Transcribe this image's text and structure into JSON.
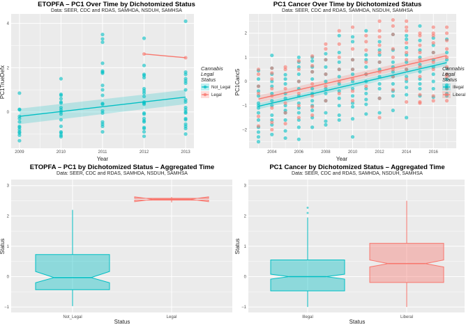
{
  "colors": {
    "teal": "#00BFC4",
    "salmon": "#F8766D",
    "panel_bg": "#EBEBEB",
    "grid": "#FFFFFF"
  },
  "chart_data": [
    {
      "type": "scatter",
      "title": "ETOPFA – PC1 Over Time by Dichotomized Status",
      "subtitle": "Data: SEER, CDC and RDAS, SAMHDA, NSDUH, SAMHSA",
      "xlabel": "Year",
      "ylabel": "PC1TrueDefx",
      "xticks": [
        2009,
        2010,
        2011,
        2012,
        2013
      ],
      "yticks": [
        0,
        2,
        4
      ],
      "xlim": [
        2008.8,
        2013.2
      ],
      "ylim": [
        -1.64,
        4.43
      ],
      "grid": true,
      "legend": {
        "title": [
          "Cannabis",
          "Legal",
          "Status"
        ],
        "position": "right",
        "entries": [
          "Not_Legal",
          "Legal"
        ]
      },
      "series": [
        {
          "name": "Not_Legal",
          "color": "#00BFC4",
          "points": {
            "2009": [
              0.85,
              0.12,
              0.1,
              -0.2,
              -0.3,
              -0.45,
              -0.65,
              -0.7,
              -0.8,
              -0.9,
              -0.95,
              -1.05,
              -1.3
            ],
            "2010": [
              1.5,
              0.8,
              0.75,
              0.6,
              0.45,
              0.4,
              0.2,
              0.1,
              0,
              -0.1,
              -0.35,
              -0.65,
              -0.9,
              -0.95,
              -1.05,
              -1.12
            ],
            "2011": [
              3.5,
              3.3,
              3.15,
              2.2,
              1.85,
              1.8,
              1.75,
              1.2,
              1.0,
              0.75,
              0.38,
              0.35,
              0.05,
              -0.05,
              -0.45,
              -0.55,
              -0.65,
              -0.9
            ],
            "2012": [
              3.33,
              2.1,
              1.7,
              1.65,
              1.55,
              1.05,
              0.95,
              0.85,
              0.7,
              0.45,
              0.4,
              0.35,
              -0.05,
              -0.1,
              -0.3,
              -0.4,
              -0.45,
              -0.7,
              -0.75,
              -0.9,
              -1.1
            ],
            "2013": [
              4.1,
              1.8,
              1.7,
              1.5,
              1.4,
              1.3,
              1.0,
              0.55,
              0.45,
              0.2,
              0.1,
              0,
              -0.05,
              -0.3,
              -0.35,
              -0.55,
              -0.65,
              -0.75,
              -1.0
            ]
          },
          "trend": {
            "x": [
              2009,
              2013
            ],
            "y": [
              -0.2,
              0.67
            ],
            "ci_low": [
              -0.55,
              0.35
            ],
            "ci_high": [
              0.15,
              1.0
            ]
          }
        },
        {
          "name": "Legal",
          "color": "#F8766D",
          "points": {
            "2012": [
              2.62
            ],
            "2013": [
              2.45
            ]
          },
          "trend": {
            "x": [
              2012,
              2013
            ],
            "y": [
              2.62,
              2.45
            ]
          }
        }
      ]
    },
    {
      "type": "scatter",
      "title": "PC1 Cancer Over Time by Dichotomized Status",
      "subtitle": "Data: SEER, CDC and RDAS, SAMHDA, NSDUH, SAMHSA",
      "xlabel": "Year",
      "ylabel": "PC1Canc5",
      "xticks": [
        2004,
        2006,
        2008,
        2010,
        2012,
        2014,
        2016
      ],
      "yticks": [
        -2,
        -1,
        0,
        1,
        2
      ],
      "xlim": [
        2002.3,
        2017.7
      ],
      "ylim": [
        -2.77,
        2.8
      ],
      "grid": true,
      "legend": {
        "title": [
          "Cannabis",
          "Legal",
          "Status"
        ],
        "position": "right",
        "entries": [
          "Illegal",
          "Liberal"
        ]
      },
      "series": [
        {
          "name": "Illegal",
          "color": "#00BFC4",
          "points": {
            "2003": [
              0.45,
              0.1,
              -0.2,
              -0.4,
              -0.6,
              -0.9,
              -1.0,
              -1.1,
              -1.3,
              -1.6,
              -1.9,
              -2.1,
              -2.3,
              -2.5
            ],
            "2004": [
              1.08,
              0.55,
              0.3,
              0,
              -0.2,
              -0.5,
              -0.8,
              -1.0,
              -1.4,
              -1.6,
              -1.8,
              -2.2
            ],
            "2005": [
              0.28,
              0.1,
              -0.1,
              -0.5,
              -0.7,
              -1.0,
              -1.2,
              -1.3,
              -1.6,
              -2.05,
              -2.35
            ],
            "2006": [
              1.0,
              0.8,
              0.6,
              0.3,
              0,
              -0.3,
              -0.6,
              -0.9,
              -1.1,
              -1.3,
              -1.6,
              -1.9,
              -2.4
            ],
            "2007": [
              1.0,
              0.85,
              0.6,
              0.4,
              0.1,
              -0.3,
              -0.5,
              -0.8,
              -1.0,
              -1.2,
              -1.5,
              -1.9
            ],
            "2008": [
              1.15,
              0.9,
              0.6,
              0.3,
              0,
              -0.3,
              -0.5,
              -0.8,
              -1.3,
              -1.65,
              -1.8
            ],
            "2009": [
              1.9,
              1.2,
              0.8,
              0.5,
              0.2,
              -0.1,
              -0.4,
              -0.7,
              -1.0,
              -1.4,
              -1.6
            ],
            "2010": [
              1.85,
              1.65,
              0.9,
              0.5,
              0.3,
              0,
              -0.3,
              -0.6,
              -0.9,
              -1.05,
              -1.55,
              -2.3
            ],
            "2011": [
              2.1,
              1.1,
              0.9,
              0.6,
              0.3,
              0,
              -0.3,
              -0.5,
              -0.75,
              -0.95,
              -1.35
            ],
            "2012": [
              1.65,
              1.3,
              1.1,
              0.8,
              0.5,
              0.2,
              -0.1,
              -0.3,
              -0.7,
              -1.3
            ],
            "2013": [
              1.95,
              1.3,
              0.8,
              0.6,
              0.4,
              0.2,
              -0.1,
              -0.4,
              -0.6,
              -1.2
            ],
            "2014": [
              1.9,
              1.75,
              1.4,
              1.1,
              0.8,
              0.5,
              0.2,
              0,
              -0.25,
              -0.55,
              -1.5
            ],
            "2015": [
              2.3,
              1.7,
              1.3,
              1.0,
              0.7,
              0.4,
              0.1,
              -0.1,
              -0.3,
              -0.6
            ],
            "2016": [
              1.8,
              1.5,
              1.2,
              0.9,
              0.6,
              0.3,
              0,
              -0.3,
              -0.65
            ],
            "2017": [
              1.75,
              1.2,
              0.9,
              0.55,
              0.3,
              0.1,
              -0.15,
              -0.3,
              -0.5,
              -0.6
            ]
          },
          "trend": {
            "x": [
              2003,
              2017
            ],
            "y": [
              -1.03,
              0.78
            ],
            "ci_low": [
              -1.15,
              0.66
            ],
            "ci_high": [
              -0.91,
              0.9
            ]
          }
        },
        {
          "name": "Liberal",
          "color": "#F8766D",
          "points": {
            "2003": [
              0.5,
              0.3,
              -0.2,
              -0.5,
              -1.45,
              -1.85
            ],
            "2004": [
              0.55,
              0.35,
              0.1,
              -0.3,
              -0.6,
              -1.1,
              -1.7,
              -2.0
            ],
            "2005": [
              0.6,
              0.5,
              -0.3,
              -0.9,
              -1.3,
              -1.75
            ],
            "2006": [
              0.85,
              0.5,
              0,
              -0.5,
              -1.0,
              -1.5
            ],
            "2007": [
              1.05,
              0.65,
              0.4,
              -0.1,
              -0.6,
              -1.05,
              -1.4
            ],
            "2008": [
              1.55,
              1.35,
              0.9,
              0.3,
              -0.2,
              -0.8
            ],
            "2009": [
              2.1,
              1.55,
              1.0,
              0.5,
              0,
              -0.5
            ],
            "2010": [
              2.25,
              1.35,
              0.9,
              0.5,
              0.1,
              -0.4,
              -0.8
            ],
            "2011": [
              1.9,
              1.65,
              1.3,
              0.8,
              0.3,
              -0.2
            ],
            "2012": [
              2.5,
              2.1,
              1.85,
              1.5,
              1.2,
              0.8,
              0.4,
              -0.7,
              -1.5
            ],
            "2013": [
              2.55,
              2.3,
              1.95,
              1.35,
              1.0,
              0.5,
              0.2,
              -0.35
            ],
            "2014": [
              2.5,
              2.25,
              2.1,
              1.6,
              1.2,
              0.9,
              0.5,
              0.1,
              -0.85
            ],
            "2015": [
              2.0,
              1.9,
              1.5,
              1.2,
              0.9,
              0.6,
              0.2,
              -0.55,
              -0.85,
              -0.9
            ],
            "2016": [
              2.25,
              2.0,
              1.9,
              1.6,
              1.2,
              0.8,
              0.5,
              -0.6,
              -0.8
            ],
            "2017": [
              2.25,
              2.0,
              1.7,
              1.35,
              1.0,
              0.6,
              0.3,
              0.2,
              -0.3,
              -0.8
            ]
          },
          "trend": {
            "x": [
              2003,
              2017
            ],
            "y": [
              -0.73,
              1.07
            ],
            "ci_low": [
              -0.88,
              0.93
            ],
            "ci_high": [
              -0.58,
              1.21
            ]
          }
        }
      ]
    },
    {
      "type": "box",
      "title": "ETOPFA – PC1 by Dichotomized Status – Aggregated Time",
      "subtitle": "Data: SEER, CDC and RDAS, SAMHDA, NSDUH, SAMHSA",
      "xlabel": "Status",
      "ylabel": "Status",
      "categories": [
        "Not_Legal",
        "Legal"
      ],
      "yticks": [
        -1,
        0,
        1,
        2,
        3
      ],
      "ylim": [
        -1.18,
        3.2
      ],
      "grid": true,
      "boxes": [
        {
          "category": "Not_Legal",
          "color": "#00BFC4",
          "min": -0.97,
          "q1": -0.43,
          "median": -0.03,
          "q3": 0.73,
          "max": 2.2,
          "notch_low": -0.2,
          "notch_high": 0.17,
          "outliers": []
        },
        {
          "category": "Legal",
          "color": "#F8766D",
          "min": 2.45,
          "q1": 2.52,
          "median": 2.55,
          "q3": 2.58,
          "max": 2.62,
          "notch_low": 2.47,
          "notch_high": 2.63,
          "outliers": []
        }
      ]
    },
    {
      "type": "box",
      "title": "PC1 Cancer by Dichotomized Status – Aggregated Time",
      "subtitle": "Data: SEER, CDC and RDAS, SAMHDA, NSDUH, SAMHSA",
      "xlabel": "Status",
      "ylabel": "Status",
      "categories": [
        "Illegal",
        "Liberal"
      ],
      "yticks": [
        -1,
        0,
        1,
        2,
        3
      ],
      "ylim": [
        -1.18,
        3.2
      ],
      "grid": true,
      "boxes": [
        {
          "category": "Illegal",
          "color": "#00BFC4",
          "min": -1.0,
          "q1": -0.47,
          "median": 0.0,
          "q3": 0.55,
          "max": 1.95,
          "notch_low": -0.08,
          "notch_high": 0.08,
          "outliers": [
            2.1,
            2.27
          ]
        },
        {
          "category": "Liberal",
          "color": "#F8766D",
          "min": -1.0,
          "q1": -0.19,
          "median": 0.43,
          "q3": 1.1,
          "max": 2.5,
          "notch_low": 0.32,
          "notch_high": 0.55,
          "outliers": []
        }
      ]
    }
  ]
}
